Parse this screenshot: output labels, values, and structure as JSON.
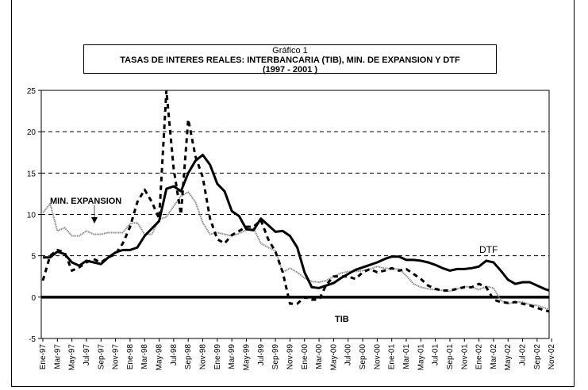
{
  "chart_data": {
    "type": "line",
    "title_lines": [
      "Gráfico 1",
      "TASAS DE INTERES REALES: INTERBANCARIA (TIB), MIN. DE EXPANSION Y DTF",
      "(1997 - 2001 )"
    ],
    "xlabel": "",
    "ylabel": "",
    "ylim": [
      -5,
      25
    ],
    "yticks": [
      "-5",
      "0",
      "5",
      "10",
      "15",
      "20",
      "25"
    ],
    "grid": "horizontal dashed",
    "x_tick_labels": [
      "Ene-97",
      "Mar-97",
      "May-97",
      "Jul-97",
      "Sep-97",
      "Nov-97",
      "Ene-98",
      "Mar-98",
      "May-98",
      "Jul-98",
      "Sep-98",
      "Nov-98",
      "Ene-99",
      "Mar-99",
      "May-99",
      "Jul-99",
      "Sep-99",
      "Nov-99",
      "Ene-00",
      "Mar-00",
      "May-00",
      "Jul-00",
      "Sep-00",
      "Nov-00",
      "Ene-01",
      "Mar-01",
      "May-01",
      "Jul-01",
      "Sep-01",
      "Nov-01",
      "Ene-02",
      "Mar-02",
      "May-02",
      "Jul-02",
      "Sep-02",
      "Nov-02"
    ],
    "x_range": [
      "Ene-97",
      "Nov-02"
    ],
    "x_frequency": "monthly",
    "series": [
      {
        "name": "DTF",
        "style": "solid thick black",
        "color": "#000000",
        "values": [
          4.8,
          4.8,
          5.5,
          5.2,
          4.2,
          3.8,
          4.4,
          4.2,
          4.0,
          4.8,
          5.4,
          5.7,
          5.7,
          6.0,
          7.4,
          8.3,
          9.2,
          13.1,
          13.4,
          12.8,
          15.0,
          16.5,
          17.2,
          16.0,
          13.7,
          12.8,
          10.4,
          9.8,
          8.2,
          8.1,
          9.5,
          8.7,
          7.9,
          8.0,
          7.4,
          6.0,
          3.0,
          1.2,
          1.1,
          1.4,
          1.7,
          2.3,
          2.8,
          3.3,
          3.6,
          3.9,
          4.2,
          4.6,
          4.9,
          4.9,
          4.5,
          4.5,
          4.4,
          4.2,
          3.9,
          3.5,
          3.2,
          3.4,
          3.4,
          3.5,
          3.7,
          4.4,
          4.2,
          3.2,
          2.1,
          1.6,
          1.8,
          1.8,
          1.4,
          1.0,
          0.7
        ]
      },
      {
        "name": "TIB",
        "style": "dashed black",
        "color": "#000000",
        "values": [
          2.0,
          5.0,
          5.7,
          5.4,
          3.2,
          3.6,
          4.2,
          4.6,
          4.2,
          4.8,
          5.2,
          6.5,
          8.5,
          11.5,
          13.0,
          11.5,
          9.5,
          25.0,
          15.5,
          10.0,
          21.5,
          17.0,
          14.5,
          9.5,
          7.0,
          6.5,
          7.5,
          8.0,
          8.5,
          8.5,
          9.3,
          7.0,
          5.5,
          3.0,
          -0.8,
          -0.8,
          0.0,
          -0.3,
          -0.3,
          1.5,
          2.5,
          2.5,
          2.5,
          2.2,
          3.0,
          3.4,
          3.0,
          3.2,
          3.5,
          3.2,
          3.4,
          2.8,
          2.2,
          1.4,
          1.0,
          0.8,
          0.8,
          1.0,
          1.2,
          1.2,
          1.6,
          1.2,
          -0.3,
          -0.6,
          -0.7,
          -0.6,
          -0.8,
          -1.0,
          -1.3,
          -1.6,
          -1.8
        ]
      },
      {
        "name": "MIN. EXPANSION",
        "style": "dotted gray",
        "color": "#8a8a8a",
        "values": [
          10.2,
          11.3,
          8.0,
          8.4,
          7.4,
          7.4,
          8.0,
          7.6,
          7.6,
          7.8,
          7.8,
          7.8,
          8.9,
          9.0,
          7.6,
          7.6,
          9.4,
          9.7,
          11.0,
          12.2,
          12.7,
          11.5,
          9.0,
          7.6,
          7.8,
          7.6,
          7.4,
          7.7,
          8.1,
          8.3,
          6.5,
          6.0,
          5.6,
          3.0,
          3.5,
          3.0,
          2.3,
          1.9,
          1.8,
          2.0,
          2.5,
          2.9,
          3.1,
          3.1,
          3.2,
          3.4,
          3.7,
          3.5,
          3.4,
          3.4,
          2.6,
          1.6,
          1.2,
          1.0,
          0.9,
          0.8,
          0.7,
          1.0,
          1.3,
          1.2,
          0.9,
          1.3,
          1.1,
          -0.4,
          -0.8,
          -0.6,
          -0.6,
          -0.9,
          -1.0,
          -1.3,
          -1.6
        ]
      }
    ],
    "annotations": [
      "MIN. EXPANSION",
      "DTF",
      "TIB"
    ],
    "legend": "none (inline labels)"
  }
}
